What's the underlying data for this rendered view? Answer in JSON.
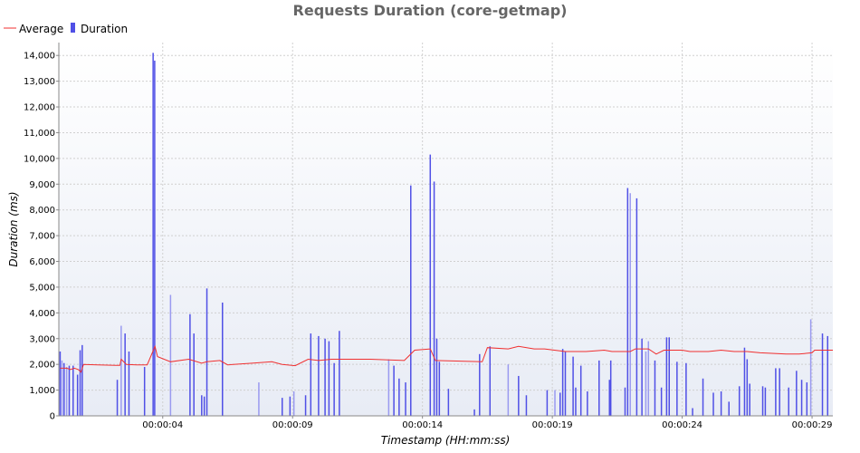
{
  "chart_data": {
    "type": "bar",
    "title": "Requests Duration (core-getmap)",
    "xlabel": "Timestamp (HH:mm:ss)",
    "ylabel": "Duration (ms)",
    "ylim": [
      0,
      14500
    ],
    "xlim": [
      0,
      29.8
    ],
    "y_ticks": [
      0,
      1000,
      2000,
      3000,
      4000,
      5000,
      6000,
      7000,
      8000,
      9000,
      10000,
      11000,
      12000,
      13000,
      14000
    ],
    "y_tick_labels": [
      "0",
      "1,000",
      "2,000",
      "3,000",
      "4,000",
      "5,000",
      "6,000",
      "7,000",
      "8,000",
      "9,000",
      "10,000",
      "11,000",
      "12,000",
      "13,000",
      "14,000"
    ],
    "x_ticks": [
      {
        "t": 4,
        "label": "00:00:04"
      },
      {
        "t": 9,
        "label": "00:00:09"
      },
      {
        "t": 14,
        "label": "00:00:14"
      },
      {
        "t": 19,
        "label": "00:00:19"
      },
      {
        "t": 24,
        "label": "00:00:24"
      },
      {
        "t": 29,
        "label": "00:00:29"
      }
    ],
    "grid": true,
    "legend_position": "top-left",
    "colors": {
      "background": "#ffffff",
      "plot_gradient_top": "#ffffff",
      "plot_gradient_bottom": "#e8ecf5",
      "grid": "#d0d0d0",
      "average": "#f03030",
      "duration": "#5050e6",
      "duration_light": "#9a9af0"
    },
    "series": [
      {
        "name": "Average",
        "kind": "line",
        "points": [
          [
            0.05,
            1850
          ],
          [
            0.3,
            1850
          ],
          [
            0.45,
            1800
          ],
          [
            0.6,
            1850
          ],
          [
            0.75,
            1800
          ],
          [
            0.85,
            1700
          ],
          [
            0.95,
            2000
          ],
          [
            1.5,
            1980
          ],
          [
            2.2,
            1960
          ],
          [
            2.35,
            1960
          ],
          [
            2.4,
            2200
          ],
          [
            2.6,
            2000
          ],
          [
            3.0,
            1980
          ],
          [
            3.4,
            1980
          ],
          [
            3.7,
            2700
          ],
          [
            3.8,
            2300
          ],
          [
            4.3,
            2100
          ],
          [
            5.0,
            2200
          ],
          [
            5.5,
            2050
          ],
          [
            5.7,
            2100
          ],
          [
            6.2,
            2150
          ],
          [
            6.5,
            1980
          ],
          [
            7.5,
            2050
          ],
          [
            8.2,
            2100
          ],
          [
            8.6,
            2000
          ],
          [
            9.1,
            1950
          ],
          [
            9.6,
            2200
          ],
          [
            10.0,
            2150
          ],
          [
            10.5,
            2200
          ],
          [
            11.0,
            2200
          ],
          [
            12.0,
            2200
          ],
          [
            13.3,
            2150
          ],
          [
            13.7,
            2550
          ],
          [
            14.3,
            2600
          ],
          [
            14.5,
            2150
          ],
          [
            16.3,
            2100
          ],
          [
            16.5,
            2650
          ],
          [
            17.3,
            2600
          ],
          [
            17.7,
            2700
          ],
          [
            18.3,
            2600
          ],
          [
            18.7,
            2600
          ],
          [
            19.5,
            2500
          ],
          [
            20.3,
            2500
          ],
          [
            21.0,
            2550
          ],
          [
            21.3,
            2500
          ],
          [
            22.0,
            2500
          ],
          [
            22.2,
            2600
          ],
          [
            22.7,
            2600
          ],
          [
            23.0,
            2400
          ],
          [
            23.3,
            2550
          ],
          [
            24.0,
            2550
          ],
          [
            24.3,
            2500
          ],
          [
            25.0,
            2500
          ],
          [
            25.5,
            2550
          ],
          [
            26.0,
            2500
          ],
          [
            26.5,
            2500
          ],
          [
            27.0,
            2450
          ],
          [
            28.0,
            2400
          ],
          [
            28.5,
            2400
          ],
          [
            29.0,
            2450
          ],
          [
            29.1,
            2550
          ],
          [
            29.8,
            2550
          ]
        ]
      },
      {
        "name": "Duration",
        "kind": "bar",
        "bars": [
          [
            0.05,
            2500,
            0
          ],
          [
            0.12,
            2150,
            1
          ],
          [
            0.2,
            2050,
            0
          ],
          [
            0.3,
            1900,
            1
          ],
          [
            0.4,
            1950,
            0
          ],
          [
            0.55,
            1950,
            0
          ],
          [
            0.72,
            1600,
            0
          ],
          [
            0.82,
            2550,
            0
          ],
          [
            0.9,
            2750,
            0
          ],
          [
            2.25,
            1400,
            0
          ],
          [
            2.4,
            3500,
            1
          ],
          [
            2.55,
            3200,
            0
          ],
          [
            2.7,
            2500,
            0
          ],
          [
            3.3,
            1900,
            0
          ],
          [
            3.63,
            14100,
            0
          ],
          [
            3.69,
            13800,
            0
          ],
          [
            4.3,
            4700,
            1
          ],
          [
            5.05,
            3950,
            0
          ],
          [
            5.2,
            3200,
            0
          ],
          [
            5.5,
            800,
            0
          ],
          [
            5.6,
            750,
            0
          ],
          [
            5.7,
            4950,
            0
          ],
          [
            6.3,
            4400,
            0
          ],
          [
            7.7,
            1300,
            1
          ],
          [
            8.6,
            700,
            0
          ],
          [
            8.9,
            750,
            0
          ],
          [
            9.05,
            950,
            1
          ],
          [
            9.5,
            800,
            0
          ],
          [
            9.7,
            3200,
            0
          ],
          [
            10.0,
            3100,
            0
          ],
          [
            10.25,
            3000,
            0
          ],
          [
            10.4,
            2900,
            0
          ],
          [
            10.6,
            2050,
            0
          ],
          [
            10.8,
            3300,
            0
          ],
          [
            12.7,
            2200,
            1
          ],
          [
            12.9,
            1950,
            0
          ],
          [
            13.1,
            1450,
            0
          ],
          [
            13.35,
            1300,
            0
          ],
          [
            13.55,
            8950,
            0
          ],
          [
            14.3,
            10150,
            0
          ],
          [
            14.45,
            9100,
            0
          ],
          [
            14.55,
            3000,
            0
          ],
          [
            14.65,
            2100,
            0
          ],
          [
            15.0,
            1050,
            0
          ],
          [
            16.0,
            250,
            0
          ],
          [
            16.2,
            2400,
            0
          ],
          [
            16.6,
            2700,
            0
          ],
          [
            17.3,
            2000,
            1
          ],
          [
            17.7,
            1550,
            0
          ],
          [
            18.0,
            800,
            0
          ],
          [
            18.8,
            1000,
            0
          ],
          [
            19.1,
            1000,
            1
          ],
          [
            19.3,
            900,
            0
          ],
          [
            19.4,
            2600,
            0
          ],
          [
            19.5,
            2500,
            0
          ],
          [
            19.8,
            2300,
            0
          ],
          [
            19.9,
            1100,
            0
          ],
          [
            20.1,
            1950,
            0
          ],
          [
            20.35,
            950,
            0
          ],
          [
            20.8,
            2150,
            0
          ],
          [
            21.2,
            1400,
            0
          ],
          [
            21.25,
            2150,
            0
          ],
          [
            21.8,
            1100,
            0
          ],
          [
            21.9,
            8850,
            0
          ],
          [
            22.0,
            8650,
            1
          ],
          [
            22.25,
            8450,
            0
          ],
          [
            22.45,
            3000,
            0
          ],
          [
            22.6,
            2500,
            1
          ],
          [
            22.7,
            2900,
            1
          ],
          [
            22.95,
            2150,
            0
          ],
          [
            23.2,
            1100,
            0
          ],
          [
            23.4,
            3050,
            0
          ],
          [
            23.5,
            3050,
            0
          ],
          [
            23.8,
            2100,
            0
          ],
          [
            24.15,
            2050,
            0
          ],
          [
            24.4,
            300,
            0
          ],
          [
            24.8,
            1450,
            0
          ],
          [
            25.2,
            900,
            0
          ],
          [
            25.5,
            950,
            0
          ],
          [
            25.8,
            550,
            0
          ],
          [
            26.2,
            1150,
            0
          ],
          [
            26.4,
            2650,
            0
          ],
          [
            26.5,
            2200,
            0
          ],
          [
            26.6,
            1250,
            0
          ],
          [
            27.1,
            1150,
            0
          ],
          [
            27.2,
            1100,
            0
          ],
          [
            27.6,
            1850,
            0
          ],
          [
            27.75,
            1850,
            0
          ],
          [
            28.1,
            1100,
            0
          ],
          [
            28.4,
            1750,
            0
          ],
          [
            28.6,
            1400,
            0
          ],
          [
            28.8,
            1300,
            0
          ],
          [
            28.95,
            3750,
            1
          ],
          [
            29.4,
            3200,
            0
          ],
          [
            29.6,
            3100,
            0
          ]
        ]
      }
    ]
  }
}
